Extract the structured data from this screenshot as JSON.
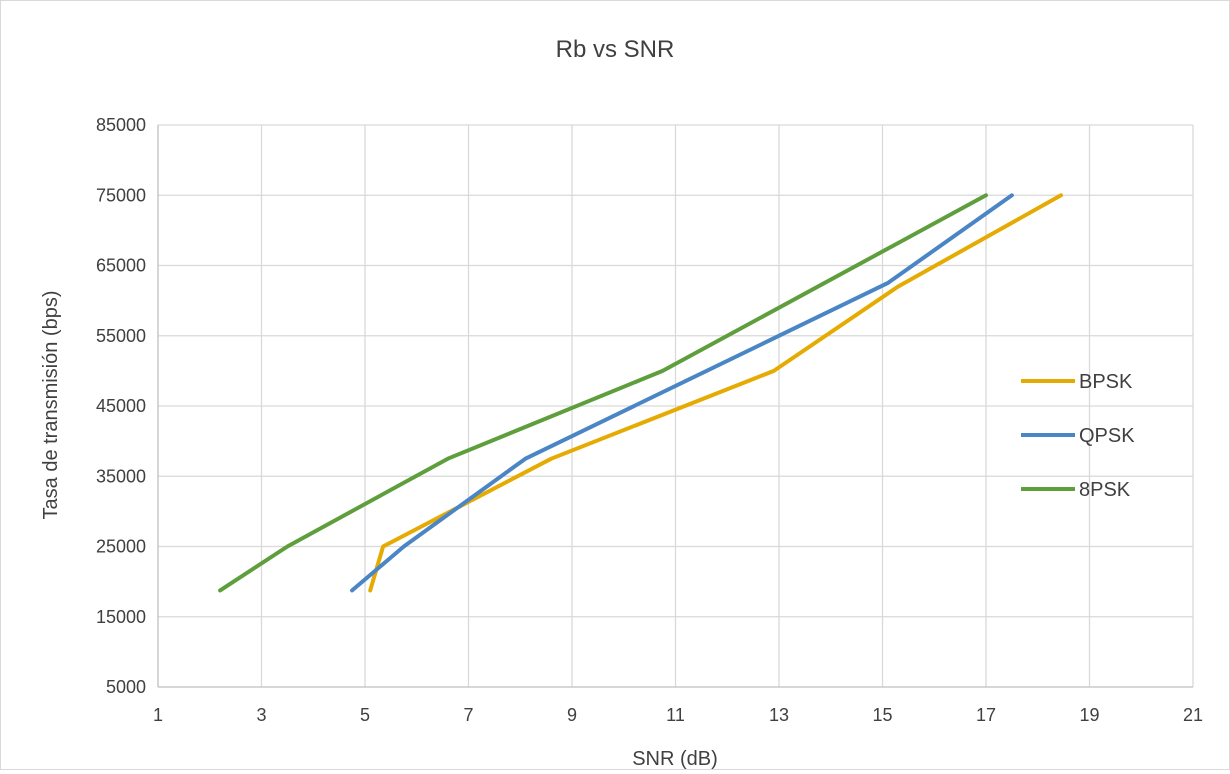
{
  "chart_data": {
    "type": "line",
    "title": "Rb vs SNR",
    "xlabel": "SNR (dB)",
    "ylabel": "Tasa de transmisión (bps)",
    "xlim": [
      1,
      21
    ],
    "ylim": [
      5000,
      85000
    ],
    "x_ticks": [
      1,
      3,
      5,
      7,
      9,
      11,
      13,
      15,
      17,
      19,
      21
    ],
    "y_ticks": [
      5000,
      15000,
      25000,
      35000,
      45000,
      55000,
      65000,
      75000,
      85000
    ],
    "grid": true,
    "legend_position": "right",
    "series": [
      {
        "name": "BPSK",
        "color": "#E6AB02",
        "x": [
          5.1,
          5.35,
          8.6,
          12.9,
          15.3,
          18.45
        ],
        "y": [
          18750,
          25000,
          37500,
          50000,
          62000,
          75000
        ]
      },
      {
        "name": "QPSK",
        "color": "#4A86C5",
        "x": [
          4.75,
          5.75,
          8.1,
          15.1,
          17.5
        ],
        "y": [
          18750,
          25000,
          37500,
          62500,
          75000
        ]
      },
      {
        "name": "8PSK",
        "color": "#5E9E3C",
        "x": [
          2.2,
          3.5,
          6.6,
          10.75,
          17.0
        ],
        "y": [
          18750,
          25000,
          37500,
          50000,
          75000
        ]
      }
    ]
  }
}
